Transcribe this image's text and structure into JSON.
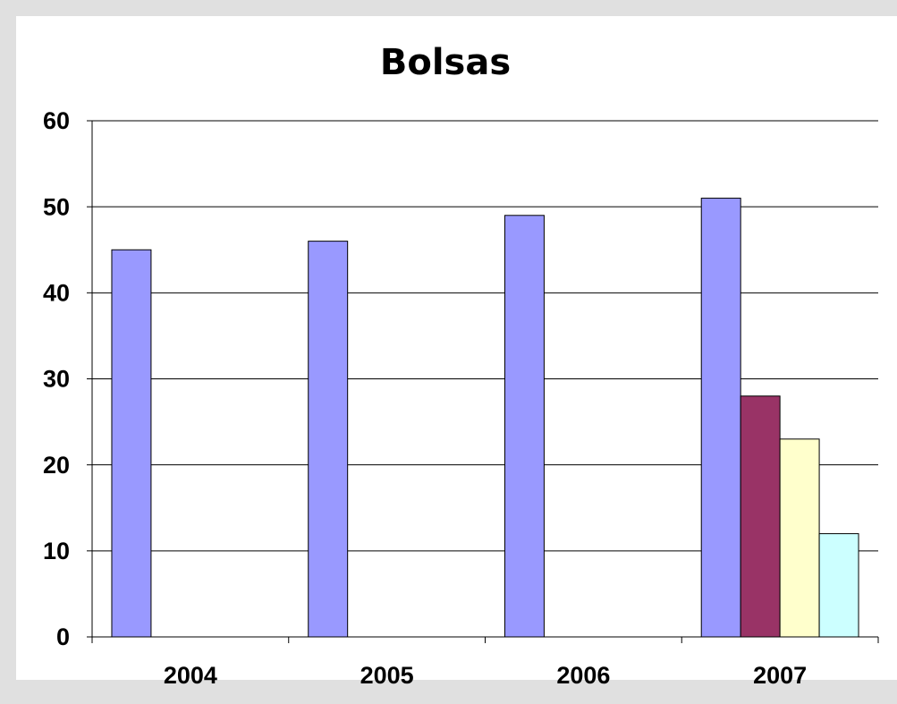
{
  "chart_data": {
    "type": "bar",
    "title": "Bolsas",
    "categories": [
      "2004",
      "2005",
      "2006",
      "2007"
    ],
    "series": [
      {
        "color": "#9999ff",
        "values": [
          45,
          46,
          49,
          51
        ]
      },
      {
        "color": "#993366",
        "values": [
          null,
          null,
          null,
          28
        ]
      },
      {
        "color": "#ffffcc",
        "values": [
          null,
          null,
          null,
          23
        ]
      },
      {
        "color": "#ccffff",
        "values": [
          null,
          null,
          null,
          12
        ]
      }
    ],
    "ylim": [
      0,
      60
    ],
    "yticks": [
      0,
      10,
      20,
      30,
      40,
      50,
      60
    ],
    "grid": true
  }
}
